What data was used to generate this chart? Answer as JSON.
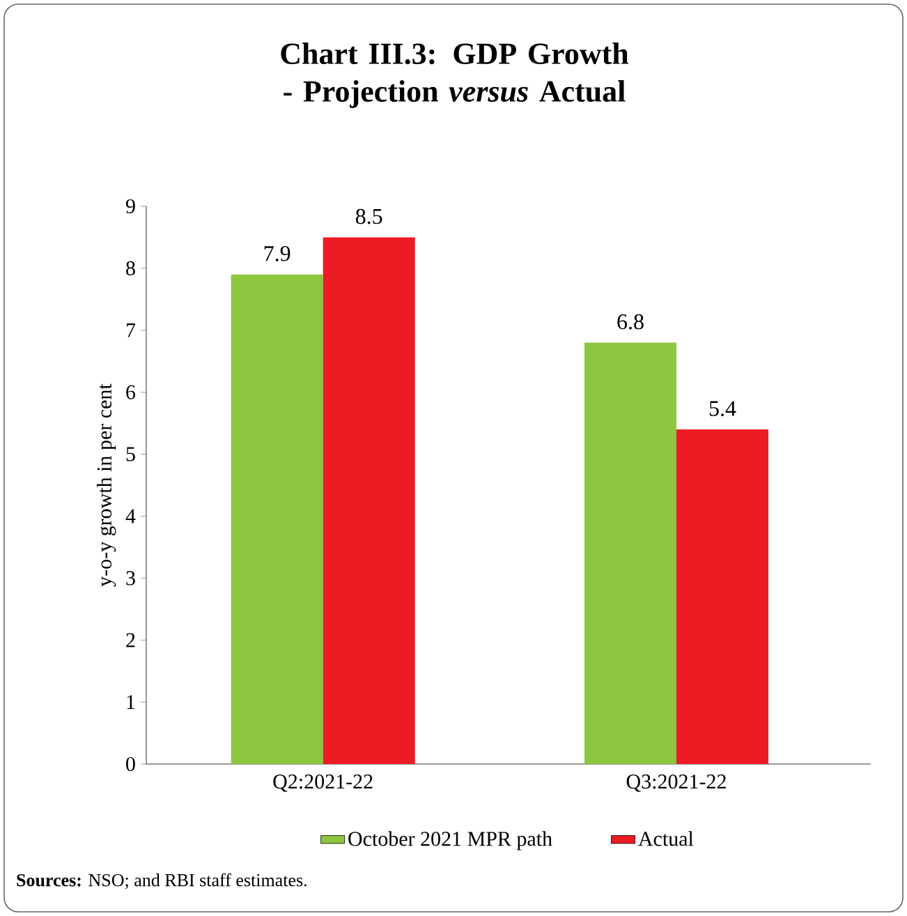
{
  "chart_data": {
    "type": "bar",
    "title": "Chart III.3: GDP Growth - Projection *versus* Actual",
    "categories": [
      "Q2:2021-22",
      "Q3:2021-22"
    ],
    "series": [
      {
        "name": "October 2021 MPR path",
        "color": "#8dc63f",
        "values": [
          7.9,
          6.8
        ]
      },
      {
        "name": "Actual",
        "color": "#ed1c24",
        "values": [
          8.5,
          5.4
        ]
      }
    ],
    "ylabel": "y-o-y growth in per cent",
    "ylim": [
      0,
      9
    ],
    "yticks": [
      0,
      1,
      2,
      3,
      4,
      5,
      6,
      7,
      8,
      9
    ],
    "data_labels": true,
    "legend": "bottom",
    "annotations": [
      "**Sources:** NSO; and RBI staff estimates."
    ]
  }
}
